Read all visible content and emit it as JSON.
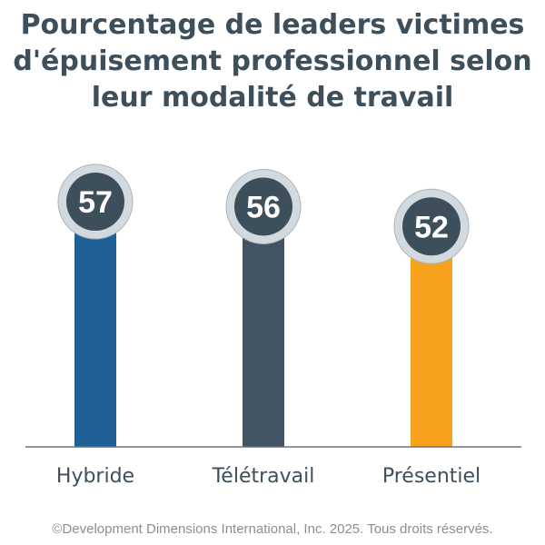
{
  "chart_data": {
    "type": "bar",
    "title": "Pourcentage de leaders victimes\nd'épuisement professionnel selon\nleur modalité de travail",
    "categories": [
      "Hybride",
      "Télétravail",
      "Présentiel"
    ],
    "values": [
      57,
      56,
      52
    ],
    "data_labels": [
      "57",
      "56",
      "52"
    ],
    "colors": [
      "#1f6196",
      "#425464",
      "#f6a21e"
    ],
    "ylim": [
      0,
      60
    ],
    "grid": false,
    "legend": "none",
    "xlabel": "",
    "ylabel": ""
  },
  "footer": {
    "copyright": "©Development Dimensions International, Inc. 2025. Tous droits réservés."
  }
}
